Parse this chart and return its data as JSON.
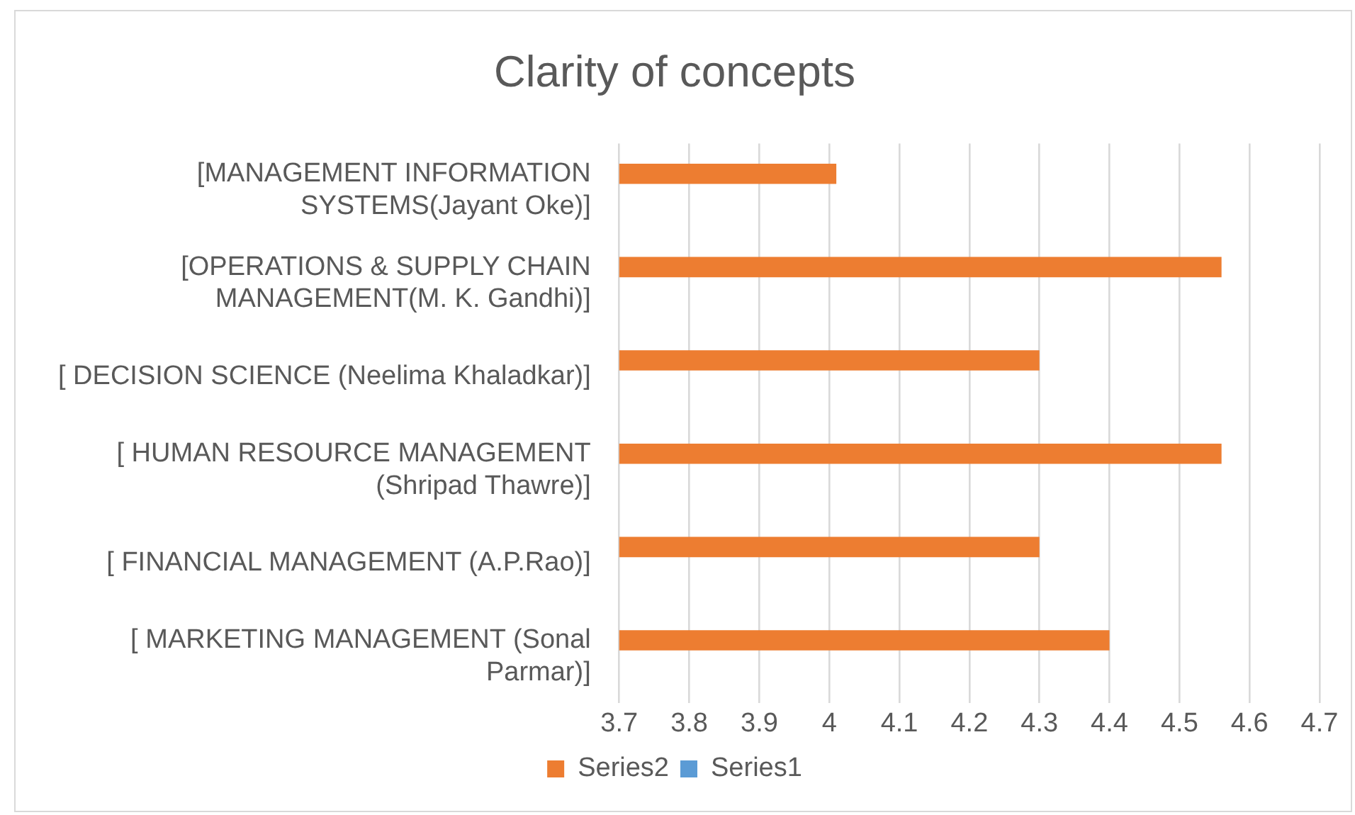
{
  "chart_data": {
    "type": "bar",
    "orientation": "horizontal",
    "title": "Clarity of concepts",
    "categories": [
      "[MANAGEMENT INFORMATION SYSTEMS(Jayant Oke)]",
      "[OPERATIONS & SUPPLY CHAIN MANAGEMENT(M. K. Gandhi)]",
      "[ DECISION SCIENCE (Neelima Khaladkar)]",
      "[ HUMAN RESOURCE MANAGEMENT (Shripad Thawre)]",
      "[ FINANCIAL MANAGEMENT (A.P.Rao)]",
      "[ MARKETING MANAGEMENT (Sonal Parmar)]"
    ],
    "series": [
      {
        "name": "Series2",
        "color": "#ed7d31",
        "values": [
          4.01,
          4.56,
          4.3,
          4.56,
          4.3,
          4.4
        ]
      },
      {
        "name": "Series1",
        "color": "#5b9bd5",
        "values": [
          null,
          null,
          null,
          null,
          null,
          null
        ]
      }
    ],
    "xlim": [
      3.7,
      4.7
    ],
    "xticks": [
      3.7,
      3.8,
      3.9,
      4,
      4.1,
      4.2,
      4.3,
      4.4,
      4.5,
      4.6,
      4.7
    ],
    "grid": "x",
    "legend": "bottom"
  }
}
